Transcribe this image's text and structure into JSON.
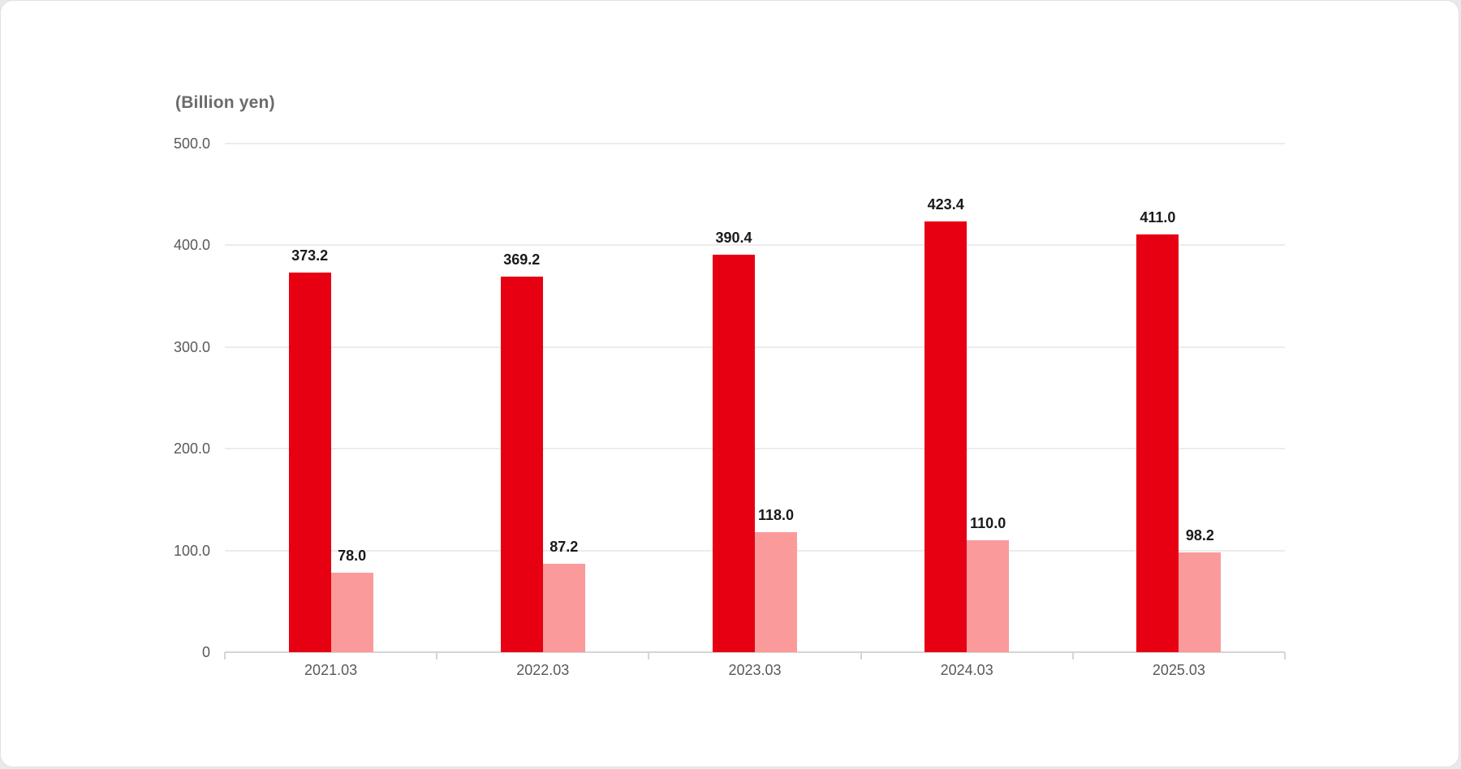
{
  "chart_data": {
    "type": "bar",
    "title": "(Billion yen)",
    "categories": [
      "2021.03",
      "2022.03",
      "2023.03",
      "2024.03",
      "2025.03"
    ],
    "series": [
      {
        "name": "series-1",
        "color": "#e60012",
        "values": [
          373.2,
          369.2,
          390.4,
          423.4,
          411.0
        ]
      },
      {
        "name": "series-2",
        "color": "#fb9a9b",
        "values": [
          78.0,
          87.2,
          118.0,
          110.0,
          98.2
        ]
      }
    ],
    "value_labels": [
      [
        "373.2",
        "369.2",
        "390.4",
        "423.4",
        "411.0"
      ],
      [
        "78.0",
        "87.2",
        "118.0",
        "110.0",
        "98.2"
      ]
    ],
    "ylim": [
      0,
      500
    ],
    "yticks": [
      {
        "value": 500,
        "label": "500.0"
      },
      {
        "value": 400,
        "label": "400.0"
      },
      {
        "value": 300,
        "label": "300.0"
      },
      {
        "value": 200,
        "label": "200.0"
      },
      {
        "value": 100,
        "label": "100.0"
      },
      {
        "value": 0,
        "label": "0"
      }
    ],
    "grid": true,
    "legend": "none",
    "colors": {
      "gridline": "#ececec",
      "axis": "#d5d5d5",
      "tick_text": "#595959",
      "value_text": "#1a1a1a"
    }
  }
}
